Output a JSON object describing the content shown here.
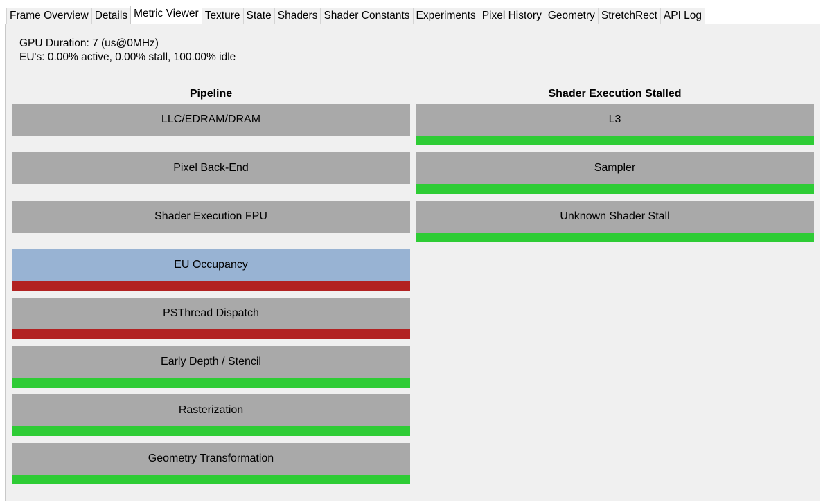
{
  "tabs": [
    {
      "label": "Frame Overview",
      "active": false
    },
    {
      "label": "Details",
      "active": false
    },
    {
      "label": "Metric Viewer",
      "active": true
    },
    {
      "label": "Texture",
      "active": false
    },
    {
      "label": "State",
      "active": false
    },
    {
      "label": "Shaders",
      "active": false
    },
    {
      "label": "Shader Constants",
      "active": false
    },
    {
      "label": "Experiments",
      "active": false
    },
    {
      "label": "Pixel History",
      "active": false
    },
    {
      "label": "Geometry",
      "active": false
    },
    {
      "label": "StretchRect",
      "active": false
    },
    {
      "label": "API Log",
      "active": false
    }
  ],
  "summary": {
    "gpu_duration": "GPU Duration: 7 (us@0MHz)",
    "eu_stats": "EU's: 0.00% active, 0.00% stall, 100.00% idle"
  },
  "colors": {
    "tile": "#a9a9a9",
    "tile_selected": "#98b3d3",
    "good": "#2ecc35",
    "bad": "#b22222",
    "panel_bg": "#f0f0f0"
  },
  "pipeline": {
    "title": "Pipeline",
    "metrics": [
      {
        "label": "LLC/EDRAM/DRAM",
        "status": "none",
        "selected": false
      },
      {
        "label": "Pixel Back-End",
        "status": "none",
        "selected": false
      },
      {
        "label": "Shader Execution FPU",
        "status": "none",
        "selected": false
      },
      {
        "label": "EU Occupancy",
        "status": "bad",
        "selected": true
      },
      {
        "label": "PSThread Dispatch",
        "status": "bad",
        "selected": false
      },
      {
        "label": "Early Depth / Stencil",
        "status": "good",
        "selected": false
      },
      {
        "label": "Rasterization",
        "status": "good",
        "selected": false
      },
      {
        "label": "Geometry Transformation",
        "status": "good",
        "selected": false
      }
    ]
  },
  "stalled": {
    "title": "Shader Execution Stalled",
    "metrics": [
      {
        "label": "L3",
        "status": "good",
        "selected": false
      },
      {
        "label": "Sampler",
        "status": "good",
        "selected": false
      },
      {
        "label": "Unknown Shader Stall",
        "status": "good",
        "selected": false
      }
    ]
  }
}
